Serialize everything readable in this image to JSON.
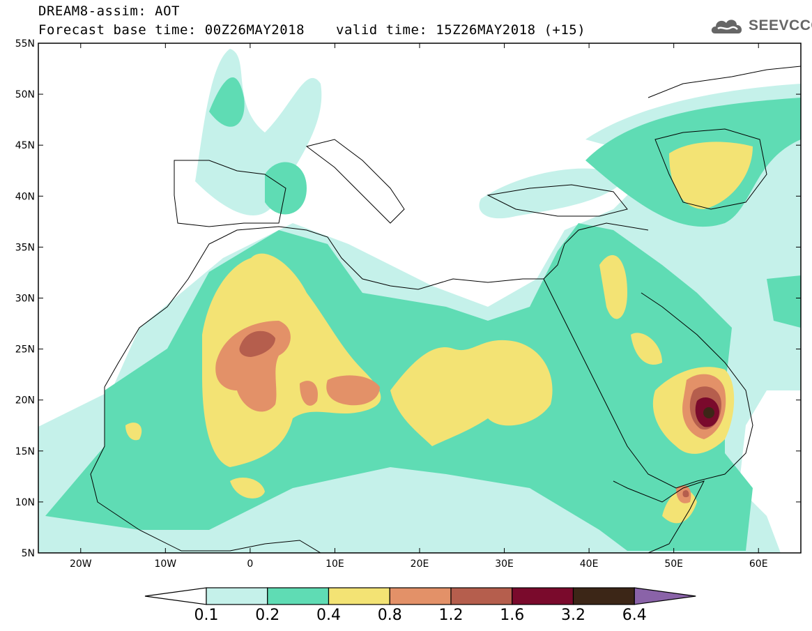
{
  "title": {
    "line1": "DREAM8-assim: AOT",
    "line2": "Forecast base time: 00Z26MAY2018",
    "line2b": "valid time: 15Z26MAY2018 (+15)"
  },
  "brand": {
    "text": "SEEVCCC",
    "icon": "cloud-logo-icon"
  },
  "map": {
    "lon_range": [
      -25,
      65
    ],
    "lat_range": [
      5,
      55
    ],
    "lat_ticks": [
      {
        "v": 55,
        "label": "55N"
      },
      {
        "v": 50,
        "label": "50N"
      },
      {
        "v": 45,
        "label": "45N"
      },
      {
        "v": 40,
        "label": "40N"
      },
      {
        "v": 35,
        "label": "35N"
      },
      {
        "v": 30,
        "label": "30N"
      },
      {
        "v": 25,
        "label": "25N"
      },
      {
        "v": 20,
        "label": "20N"
      },
      {
        "v": 15,
        "label": "15N"
      },
      {
        "v": 10,
        "label": "10N"
      },
      {
        "v": 5,
        "label": "5N"
      }
    ],
    "lon_ticks": [
      {
        "v": -20,
        "label": "20W"
      },
      {
        "v": -10,
        "label": "10W"
      },
      {
        "v": 0,
        "label": "0"
      },
      {
        "v": 10,
        "label": "10E"
      },
      {
        "v": 20,
        "label": "20E"
      },
      {
        "v": 30,
        "label": "30E"
      },
      {
        "v": 40,
        "label": "40E"
      },
      {
        "v": 50,
        "label": "50E"
      },
      {
        "v": 60,
        "label": "60E"
      }
    ]
  },
  "colorbar": {
    "labels": [
      "0.1",
      "0.2",
      "0.4",
      "0.8",
      "1.2",
      "1.6",
      "3.2",
      "6.4"
    ],
    "colors": [
      "#c5f1ea",
      "#5fdcb4",
      "#f3e374",
      "#e39168",
      "#b55e4d",
      "#7a0a2c",
      "#3c2617",
      "#8a63a8"
    ]
  }
}
